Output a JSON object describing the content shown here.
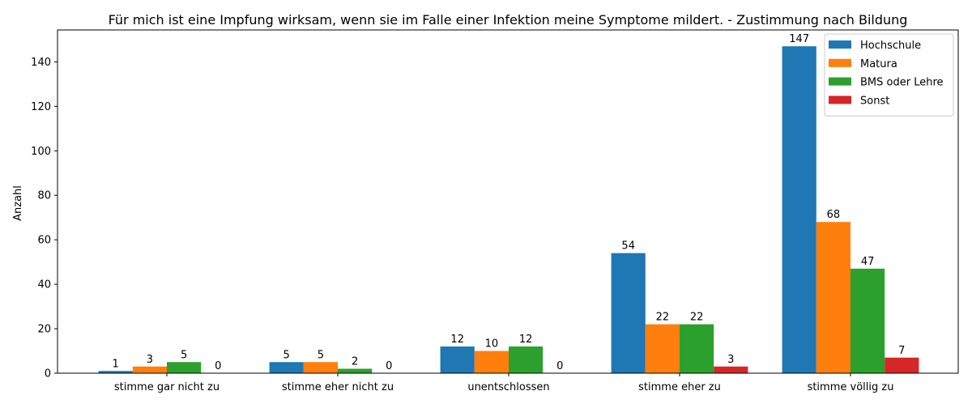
{
  "chart_data": {
    "type": "bar",
    "title": "Für mich ist eine Impfung wirksam, wenn sie im Falle einer Infektion meine Symptome mildert. - Zustimmung nach Bildung",
    "xlabel": "",
    "ylabel": "Anzahl",
    "categories": [
      "stimme gar nicht zu",
      "stimme eher nicht zu",
      "unentschlossen",
      "stimme eher zu",
      "stimme völlig zu"
    ],
    "series": [
      {
        "name": "Hochschule",
        "color": "#1f77b4",
        "values": [
          1,
          5,
          12,
          54,
          147
        ]
      },
      {
        "name": "Matura",
        "color": "#ff7f0e",
        "values": [
          3,
          5,
          10,
          22,
          68
        ]
      },
      {
        "name": "BMS oder Lehre",
        "color": "#2ca02c",
        "values": [
          5,
          2,
          12,
          22,
          47
        ]
      },
      {
        "name": "Sonst",
        "color": "#d62728",
        "values": [
          0,
          0,
          0,
          3,
          7
        ]
      }
    ],
    "ylim": [
      0,
      154.35
    ],
    "yticks": [
      0,
      20,
      40,
      60,
      80,
      100,
      120,
      140
    ],
    "grid": false,
    "legend_position": "top-right"
  }
}
